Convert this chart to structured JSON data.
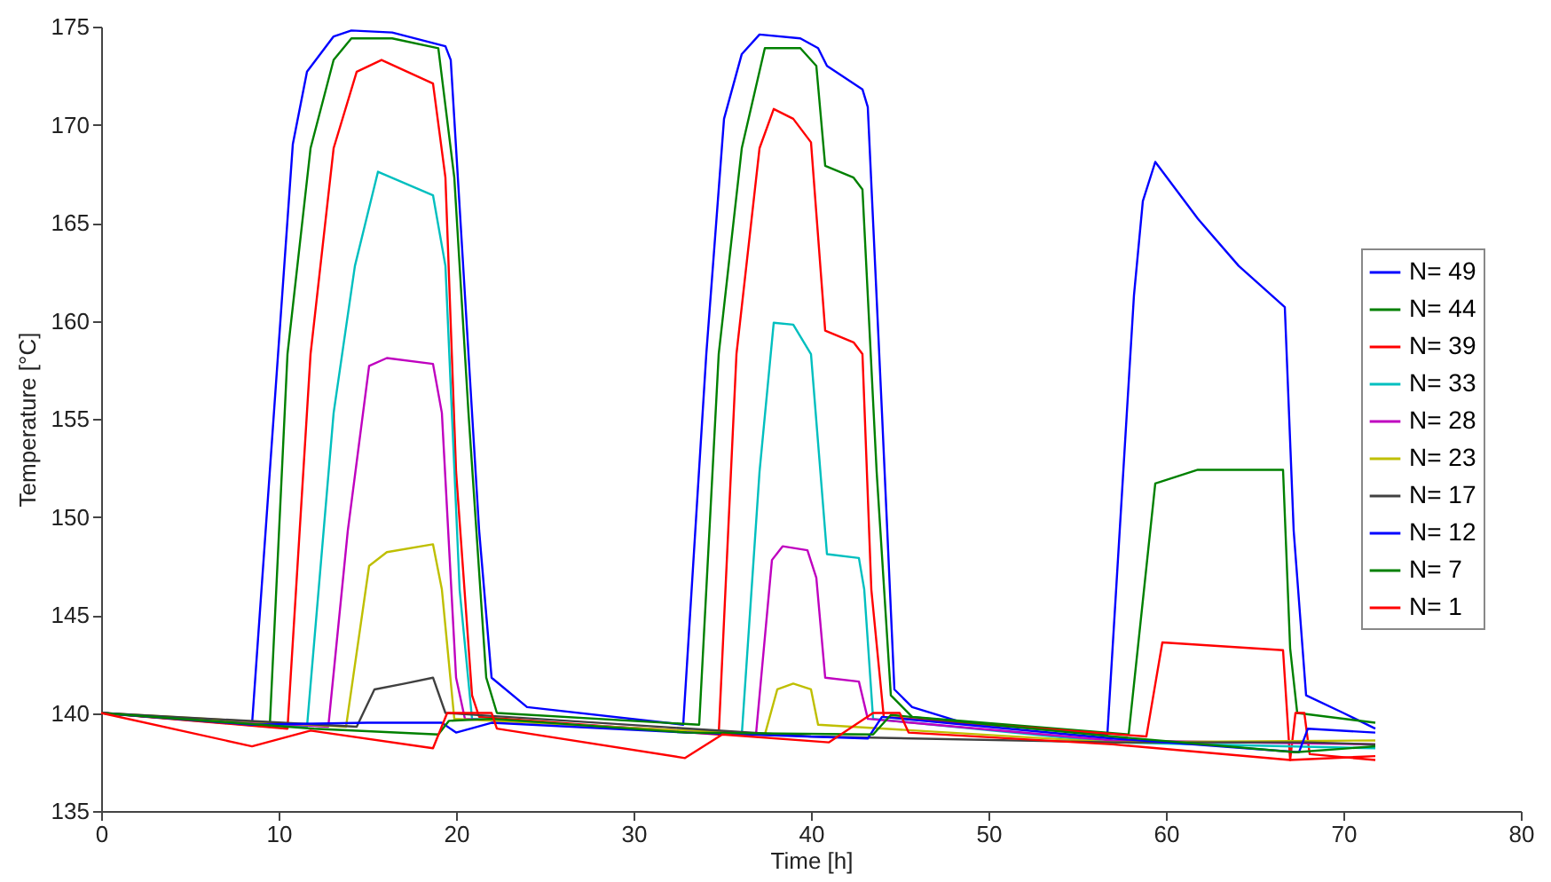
{
  "chart_data": {
    "type": "line",
    "xlabel": "Time [h]",
    "ylabel": "Temperature [°C]",
    "xlim": [
      0,
      80
    ],
    "ylim": [
      135,
      175
    ],
    "xticks": [
      0,
      10,
      20,
      30,
      40,
      50,
      60,
      70,
      80
    ],
    "yticks": [
      135,
      140,
      145,
      150,
      155,
      160,
      165,
      170,
      175
    ],
    "legend": "right",
    "marker": "none",
    "line_style": "solid",
    "grid": false,
    "series": [
      {
        "name": "N= 49",
        "color": "#0000ff",
        "x": [
          0,
          8.5,
          10.8,
          11.6,
          13.1,
          14.1,
          16.4,
          19.4,
          19.7,
          20.5,
          21.3,
          22,
          24,
          32.8,
          34.1,
          35.1,
          36.1,
          37.1,
          39.4,
          40.4,
          40.9,
          42.9,
          43.2,
          44,
          44.7,
          45.7,
          48.6,
          56.7,
          58.2,
          58.7,
          59.4,
          61.8,
          64.1,
          66.7,
          67.2,
          67.9,
          70,
          71.8
        ],
        "values": [
          140,
          139.4,
          169,
          172.7,
          174.5,
          174.8,
          174.7,
          174,
          173.3,
          161.3,
          149.3,
          141.8,
          140.3,
          139.4,
          158.3,
          170.3,
          173.6,
          174.6,
          174.4,
          173.9,
          173,
          171.8,
          170.9,
          155.3,
          141.2,
          140.3,
          139.5,
          138.9,
          161.3,
          166.1,
          168.1,
          165.2,
          162.8,
          160.7,
          149.3,
          140.9,
          140,
          139.2
        ]
      },
      {
        "name": "N= 44",
        "color": "#008000",
        "x": [
          0,
          9.5,
          10.5,
          11.8,
          13.1,
          14.1,
          16.4,
          19,
          19.9,
          20.7,
          21.7,
          22.3,
          33.7,
          34.8,
          36.1,
          37.4,
          39.4,
          40.3,
          40.8,
          42.4,
          42.9,
          43.7,
          44.5,
          45.7,
          57.9,
          59.4,
          61.8,
          66.6,
          67,
          67.4,
          71.8
        ],
        "values": [
          140,
          139.3,
          158.3,
          168.8,
          173.3,
          174.4,
          174.4,
          173.9,
          167.3,
          155.3,
          141.8,
          140,
          139.4,
          158.3,
          168.8,
          173.9,
          173.9,
          173,
          167.9,
          167.3,
          166.7,
          152.3,
          140.9,
          139.8,
          138.9,
          151.7,
          152.4,
          152.4,
          143.3,
          140,
          139.5
        ]
      },
      {
        "name": "N= 39",
        "color": "#ff0000",
        "x": [
          0,
          10.5,
          11.8,
          13.1,
          14.4,
          15.8,
          18.7,
          19.4,
          20,
          20.9,
          21.3,
          34.8,
          35.8,
          37.1,
          37.9,
          39,
          40,
          40.8,
          42.4,
          42.9,
          43.4,
          44.1,
          58.9,
          59.8,
          66.6,
          67,
          67.3,
          67.8,
          68.1,
          71.8
        ],
        "values": [
          140,
          139.2,
          158.3,
          168.8,
          172.7,
          173.3,
          172.1,
          167.3,
          152.3,
          140.9,
          139.8,
          138.9,
          158.3,
          168.8,
          170.8,
          170.3,
          169.1,
          159.5,
          158.9,
          158.3,
          146.3,
          139.8,
          138.8,
          143.6,
          143.2,
          137.6,
          140,
          140,
          137.9,
          137.6
        ]
      },
      {
        "name": "N= 33",
        "color": "#00bfbf",
        "x": [
          0,
          11.6,
          13.1,
          14.3,
          15.6,
          18.7,
          19.4,
          20.2,
          20.9,
          36.1,
          37.1,
          37.9,
          39,
          40,
          40.9,
          42.7,
          43,
          43.5,
          57,
          71.8
        ],
        "values": [
          140,
          139.3,
          155.3,
          162.8,
          167.6,
          166.4,
          162.8,
          146.3,
          139.7,
          138.9,
          152.3,
          159.9,
          159.8,
          158.3,
          148.1,
          147.9,
          146.3,
          139.7,
          138.5,
          138.2
        ]
      },
      {
        "name": "N= 28",
        "color": "#bf00bf",
        "x": [
          0,
          12.8,
          13.9,
          15.1,
          16.1,
          18.7,
          19.2,
          20,
          20.5,
          36.9,
          37.8,
          38.4,
          39.8,
          40.3,
          40.8,
          42.7,
          43.2,
          57,
          71.8
        ],
        "values": [
          140,
          139.3,
          149.3,
          157.7,
          158.1,
          157.8,
          155.3,
          141.8,
          139.7,
          138.9,
          147.8,
          148.5,
          148.3,
          146.9,
          141.8,
          141.6,
          139.7,
          138.6,
          138.4
        ]
      },
      {
        "name": "N= 23",
        "color": "#bfbf00",
        "x": [
          0,
          13.8,
          15.1,
          16.1,
          18.7,
          19.2,
          19.9,
          37.4,
          38.1,
          39,
          40,
          40.4,
          57,
          71.8
        ],
        "values": [
          140,
          139.3,
          147.5,
          148.2,
          148.6,
          146.3,
          139.7,
          138.9,
          141.2,
          141.5,
          141.2,
          139.4,
          138.5,
          138.6
        ]
      },
      {
        "name": "N= 17",
        "color": "#404040",
        "x": [
          0,
          14.4,
          15.4,
          17.1,
          18.7,
          19.4,
          40,
          57,
          68,
          71.8
        ],
        "values": [
          140,
          139.3,
          141.2,
          141.5,
          141.8,
          140,
          138.8,
          138.5,
          138.5,
          138.4
        ]
      },
      {
        "name": "N= 12",
        "color": "#0000ff",
        "x": [
          0,
          8.5,
          15,
          19.2,
          20,
          22,
          33,
          43.2,
          44,
          57,
          67.5,
          68,
          71.8
        ],
        "values": [
          140,
          139.4,
          139.5,
          139.5,
          139,
          139.5,
          139,
          138.7,
          139.8,
          138.7,
          138,
          139.2,
          139
        ]
      },
      {
        "name": "N= 7",
        "color": "#008000",
        "x": [
          0,
          12,
          19,
          19.6,
          22,
          33,
          43.5,
          44.5,
          57,
          67.3,
          71.8
        ],
        "values": [
          140,
          139.2,
          138.9,
          139.6,
          139.7,
          139,
          138.9,
          139.9,
          138.8,
          138,
          138.3
        ]
      },
      {
        "name": "N= 1",
        "color": "#ff0000",
        "x": [
          0,
          8.5,
          11.8,
          18.7,
          19.5,
          22,
          22.3,
          32.9,
          35,
          41,
          43.5,
          45,
          45.5,
          57,
          67,
          71.8
        ],
        "values": [
          140,
          138.3,
          139.1,
          138.2,
          140,
          140,
          139.2,
          137.7,
          138.9,
          138.5,
          140,
          140,
          139,
          138.4,
          137.6,
          137.8
        ]
      }
    ]
  }
}
